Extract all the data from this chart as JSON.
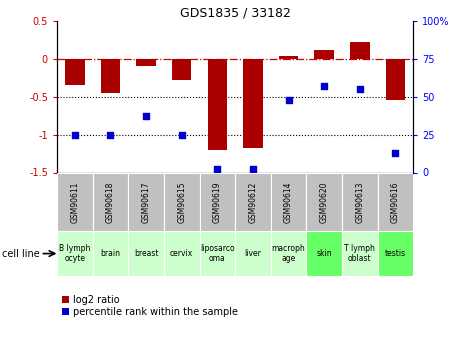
{
  "title": "GDS1835 / 33182",
  "samples": [
    "GSM90611",
    "GSM90618",
    "GSM90617",
    "GSM90615",
    "GSM90619",
    "GSM90612",
    "GSM90614",
    "GSM90620",
    "GSM90613",
    "GSM90616"
  ],
  "cell_lines": [
    "B lymph\nocyte",
    "brain",
    "breast",
    "cervix",
    "liposarco\noma",
    "liver",
    "macroph\nage",
    "skin",
    "T lymph\noblast",
    "testis"
  ],
  "cell_bg": [
    "#ccffcc",
    "#ccffcc",
    "#ccffcc",
    "#ccffcc",
    "#ccffcc",
    "#ccffcc",
    "#ccffcc",
    "#66ff66",
    "#ccffcc",
    "#66ff66"
  ],
  "sample_bg": "#c0c0c0",
  "log2_ratio": [
    -0.35,
    -0.45,
    -0.1,
    -0.28,
    -1.2,
    -1.18,
    0.03,
    0.12,
    0.22,
    -0.54
  ],
  "percentile_rank": [
    25,
    25,
    37,
    25,
    2,
    2,
    48,
    57,
    55,
    13
  ],
  "bar_color": "#aa0000",
  "dot_color": "#0000cc",
  "ylim_left": [
    -1.5,
    0.5
  ],
  "ylim_right": [
    0,
    100
  ],
  "yticks_left": [
    -1.5,
    -1.0,
    -0.5,
    0.0,
    0.5
  ],
  "yticks_right": [
    0,
    25,
    50,
    75,
    100
  ],
  "ytick_labels_left": [
    "-1.5",
    "-1",
    "-0.5",
    "0",
    "0.5"
  ],
  "ytick_labels_right": [
    "0",
    "25",
    "50",
    "75",
    "100%"
  ],
  "hlines_dotted": [
    -0.5,
    -1.0
  ],
  "hline_dashdot": 0.0,
  "legend_red": "log2 ratio",
  "legend_blue": "percentile rank within the sample",
  "cell_line_label": "cell line"
}
